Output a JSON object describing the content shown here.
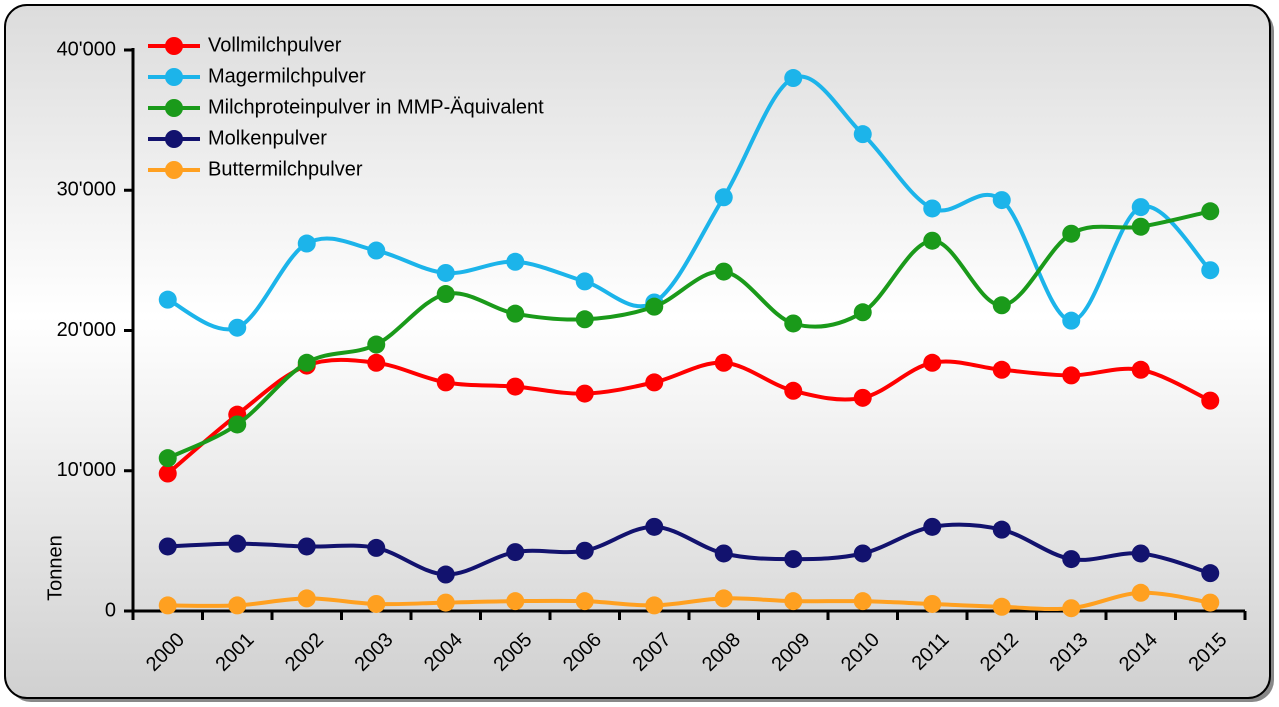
{
  "chart_data": {
    "type": "line",
    "smooth": true,
    "y_label": "Tonnen",
    "categories": [
      "2000",
      "2001",
      "2002",
      "2003",
      "2004",
      "2005",
      "2006",
      "2007",
      "2008",
      "2009",
      "2010",
      "2011",
      "2012",
      "2013",
      "2014",
      "2015"
    ],
    "series": [
      {
        "name": "Vollmilchpulver",
        "color": "#ff0000",
        "values": [
          9800,
          14000,
          17500,
          17700,
          16300,
          16000,
          15500,
          16300,
          17700,
          15700,
          15200,
          17700,
          17200,
          16800,
          17200,
          15000
        ]
      },
      {
        "name": "Magermilchpulver",
        "color": "#1cb4ea",
        "values": [
          22200,
          20200,
          26200,
          25700,
          24100,
          24900,
          23500,
          22000,
          29500,
          38000,
          34000,
          28700,
          29300,
          20700,
          28800,
          24300
        ]
      },
      {
        "name": "Milchproteinpulver in MMP-Äquivalent",
        "color": "#1a9a1a",
        "values": [
          10900,
          13300,
          17700,
          19000,
          22600,
          21200,
          20800,
          21700,
          24200,
          20500,
          21300,
          26400,
          21800,
          26900,
          27400,
          28500
        ]
      },
      {
        "name": "Molkenpulver",
        "color": "#12126e",
        "values": [
          4600,
          4800,
          4600,
          4500,
          2600,
          4200,
          4300,
          6000,
          4100,
          3700,
          4100,
          6000,
          5800,
          3700,
          4100,
          2700
        ]
      },
      {
        "name": "Buttermilchpulver",
        "color": "#ffa020",
        "values": [
          400,
          400,
          900,
          500,
          600,
          700,
          700,
          400,
          900,
          700,
          700,
          500,
          300,
          200,
          1300,
          600
        ]
      }
    ],
    "ylim": [
      0,
      40000
    ],
    "yticks": [
      0,
      {
        "value": 10000,
        "label": "10'000"
      },
      {
        "value": 20000,
        "label": "20'000"
      },
      {
        "value": 30000,
        "label": "30'000"
      },
      {
        "value": 40000,
        "label": "40'000"
      }
    ]
  }
}
